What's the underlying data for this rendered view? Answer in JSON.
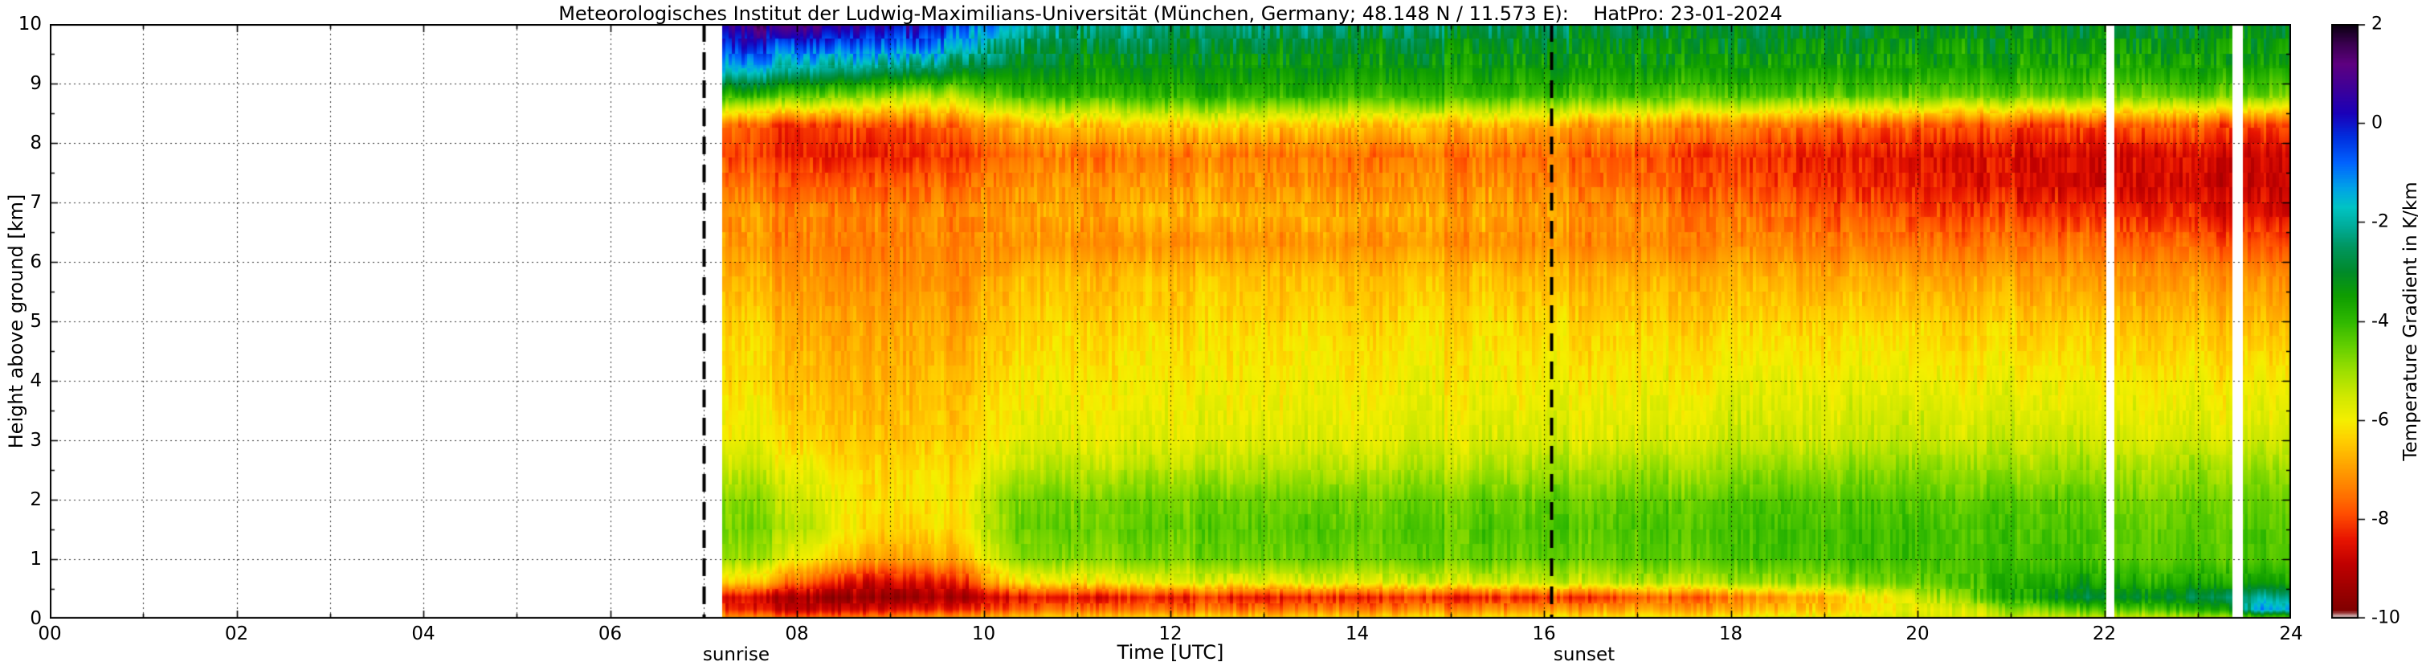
{
  "chart_data": {
    "type": "heatmap",
    "title": "Meteorologisches Institut der Ludwig-Maximilians-Universität (München, Germany; 48.148 N / 11.573 E):    HatPro: 23-01-2024",
    "xlabel": "Time [UTC]",
    "ylabel": "Height above ground [km]",
    "background": "#ffffff",
    "frame_color": "#000000",
    "grid": "dotted",
    "xlim": [
      0,
      24
    ],
    "ylim": [
      0,
      10
    ],
    "clim": [
      -10,
      2
    ],
    "x_ticks": [
      {
        "hour": 0,
        "label": "00"
      },
      {
        "hour": 2,
        "label": "02"
      },
      {
        "hour": 4,
        "label": "04"
      },
      {
        "hour": 6,
        "label": "06"
      },
      {
        "hour": 8,
        "label": "08"
      },
      {
        "hour": 10,
        "label": "10"
      },
      {
        "hour": 12,
        "label": "12"
      },
      {
        "hour": 14,
        "label": "14"
      },
      {
        "hour": 16,
        "label": "16"
      },
      {
        "hour": 18,
        "label": "18"
      },
      {
        "hour": 20,
        "label": "20"
      },
      {
        "hour": 22,
        "label": "22"
      },
      {
        "hour": 24,
        "label": "24"
      }
    ],
    "y_ticks": [
      {
        "km": 0,
        "label": "0"
      },
      {
        "km": 1,
        "label": "1"
      },
      {
        "km": 2,
        "label": "2"
      },
      {
        "km": 3,
        "label": "3"
      },
      {
        "km": 4,
        "label": "4"
      },
      {
        "km": 5,
        "label": "5"
      },
      {
        "km": 6,
        "label": "6"
      },
      {
        "km": 7,
        "label": "7"
      },
      {
        "km": 8,
        "label": "8"
      },
      {
        "km": 9,
        "label": "9"
      },
      {
        "km": 10,
        "label": "10"
      }
    ],
    "colorbar": {
      "label": "Temperature Gradient in K/km",
      "ticks": [
        {
          "value": 2,
          "label": "2"
        },
        {
          "value": 0,
          "label": "0"
        },
        {
          "value": -2,
          "label": "-2"
        },
        {
          "value": -4,
          "label": "-4"
        },
        {
          "value": -6,
          "label": "-6"
        },
        {
          "value": -8,
          "label": "-8"
        },
        {
          "value": -10,
          "label": "-10"
        }
      ]
    },
    "sun_events": [
      {
        "label": "sunrise",
        "hour": 7.0
      },
      {
        "label": "sunset",
        "hour": 16.08
      }
    ],
    "data_start_hour": 7.2,
    "data_end_hour": 24,
    "gaps": [
      [
        22.02,
        22.1
      ],
      [
        23.37,
        23.48
      ]
    ],
    "heights": [
      0,
      0.15,
      0.35,
      0.6,
      1.0,
      1.5,
      2.0,
      2.5,
      3.0,
      4.0,
      5.0,
      5.8,
      6.3,
      6.8,
      7.3,
      7.8,
      8.3,
      8.8,
      9.2,
      9.6,
      10.0
    ],
    "profiles": [
      {
        "hour": 7.2,
        "values": [
          -7.0,
          -8.2,
          -8.6,
          -6.3,
          -4.9,
          -4.6,
          -4.8,
          -5.4,
          -5.9,
          -6.2,
          -6.4,
          -6.8,
          -7.1,
          -7.0,
          -7.4,
          -8.0,
          -7.6,
          -3.8,
          -1.6,
          -0.4,
          0.8
        ]
      },
      {
        "hour": 7.6,
        "values": [
          -7.2,
          -8.5,
          -8.9,
          -6.8,
          -5.2,
          -4.8,
          -5.0,
          -5.5,
          -6.0,
          -6.3,
          -6.5,
          -6.9,
          -7.2,
          -7.1,
          -7.5,
          -8.1,
          -7.9,
          -4.0,
          -1.8,
          -0.5,
          1.0
        ]
      },
      {
        "hour": 8.1,
        "values": [
          -7.4,
          -8.8,
          -9.2,
          -7.6,
          -5.8,
          -5.2,
          -5.4,
          -5.8,
          -6.2,
          -6.5,
          -6.7,
          -7.0,
          -7.2,
          -7.2,
          -7.6,
          -8.2,
          -8.0,
          -4.2,
          -2.0,
          -0.6,
          1.2
        ]
      },
      {
        "hour": 8.7,
        "values": [
          -7.2,
          -8.6,
          -9.4,
          -8.6,
          -6.8,
          -6.2,
          -6.1,
          -6.3,
          -6.5,
          -6.7,
          -6.9,
          -7.2,
          -7.4,
          -7.3,
          -7.7,
          -8.3,
          -7.8,
          -4.6,
          -2.4,
          -0.8,
          0.6
        ]
      },
      {
        "hour": 9.3,
        "values": [
          -7.0,
          -8.5,
          -9.5,
          -8.8,
          -7.1,
          -6.5,
          -6.3,
          -6.4,
          -6.6,
          -6.8,
          -7.0,
          -7.3,
          -7.4,
          -7.4,
          -7.8,
          -8.4,
          -8.0,
          -5.4,
          -2.8,
          -1.0,
          0.2
        ]
      },
      {
        "hour": 9.8,
        "values": [
          -6.8,
          -8.3,
          -9.2,
          -8.2,
          -6.6,
          -6.1,
          -6.0,
          -6.2,
          -6.4,
          -6.6,
          -6.9,
          -7.2,
          -7.3,
          -7.2,
          -7.6,
          -8.1,
          -7.4,
          -5.0,
          -3.0,
          -1.6,
          -0.6
        ]
      },
      {
        "hour": 10.3,
        "values": [
          -6.5,
          -7.9,
          -8.6,
          -6.4,
          -5.0,
          -4.7,
          -4.8,
          -5.4,
          -5.9,
          -6.2,
          -6.5,
          -6.8,
          -7.2,
          -7.0,
          -7.2,
          -7.6,
          -6.8,
          -4.2,
          -3.3,
          -2.7,
          -1.8
        ]
      },
      {
        "hour": 11.0,
        "values": [
          -6.4,
          -7.7,
          -8.5,
          -6.1,
          -4.8,
          -4.5,
          -4.7,
          -5.3,
          -5.8,
          -6.1,
          -6.4,
          -6.7,
          -7.2,
          -6.9,
          -7.1,
          -7.5,
          -6.6,
          -4.0,
          -3.4,
          -2.9,
          -2.2
        ]
      },
      {
        "hour": 12.0,
        "values": [
          -6.3,
          -7.6,
          -8.4,
          -5.9,
          -4.7,
          -4.5,
          -4.7,
          -5.3,
          -5.8,
          -6.1,
          -6.4,
          -6.7,
          -7.2,
          -6.8,
          -7.1,
          -7.4,
          -6.4,
          -3.9,
          -3.4,
          -3.0,
          -2.4
        ]
      },
      {
        "hour": 13.0,
        "values": [
          -6.3,
          -7.5,
          -8.4,
          -5.8,
          -4.6,
          -4.4,
          -4.6,
          -5.2,
          -5.7,
          -6.0,
          -6.3,
          -6.6,
          -7.1,
          -6.8,
          -7.1,
          -7.4,
          -6.4,
          -3.9,
          -3.4,
          -3.0,
          -2.5
        ]
      },
      {
        "hour": 14.0,
        "values": [
          -6.2,
          -7.4,
          -8.3,
          -5.7,
          -4.6,
          -4.4,
          -4.6,
          -5.2,
          -5.7,
          -6.0,
          -6.3,
          -6.6,
          -7.1,
          -6.8,
          -7.2,
          -7.5,
          -6.5,
          -4.0,
          -3.4,
          -3.1,
          -2.5
        ]
      },
      {
        "hour": 15.0,
        "values": [
          -6.2,
          -7.3,
          -8.3,
          -5.6,
          -4.5,
          -4.4,
          -4.6,
          -5.2,
          -5.7,
          -6.0,
          -6.3,
          -6.6,
          -7.1,
          -6.9,
          -7.2,
          -7.5,
          -6.6,
          -4.0,
          -3.5,
          -3.1,
          -2.6
        ]
      },
      {
        "hour": 16.0,
        "values": [
          -6.1,
          -7.2,
          -8.2,
          -5.5,
          -4.5,
          -4.3,
          -4.5,
          -5.1,
          -5.6,
          -6.0,
          -6.3,
          -6.7,
          -7.2,
          -7.0,
          -7.3,
          -7.6,
          -6.8,
          -4.1,
          -3.5,
          -3.2,
          -2.7
        ]
      },
      {
        "hour": 17.0,
        "values": [
          -6.0,
          -7.0,
          -7.9,
          -5.3,
          -4.4,
          -4.3,
          -4.5,
          -5.0,
          -5.6,
          -6.0,
          -6.4,
          -6.8,
          -7.3,
          -7.2,
          -7.6,
          -7.8,
          -7.0,
          -4.2,
          -3.5,
          -3.2,
          -2.8
        ]
      },
      {
        "hour": 18.0,
        "values": [
          -5.9,
          -6.8,
          -7.5,
          -5.1,
          -4.3,
          -4.2,
          -4.4,
          -5.0,
          -5.5,
          -5.9,
          -6.4,
          -6.8,
          -7.3,
          -7.5,
          -7.9,
          -8.1,
          -7.3,
          -4.3,
          -3.6,
          -3.3,
          -2.9
        ]
      },
      {
        "hour": 19.0,
        "values": [
          -5.8,
          -6.5,
          -6.8,
          -4.9,
          -4.2,
          -4.2,
          -4.4,
          -4.9,
          -5.5,
          -5.9,
          -6.4,
          -6.9,
          -7.4,
          -7.8,
          -8.2,
          -8.4,
          -7.6,
          -4.4,
          -3.6,
          -3.3,
          -3.0
        ]
      },
      {
        "hour": 20.0,
        "values": [
          -5.7,
          -6.0,
          -5.6,
          -4.6,
          -4.2,
          -4.2,
          -4.4,
          -4.9,
          -5.4,
          -5.9,
          -6.4,
          -7.0,
          -7.5,
          -8.0,
          -8.4,
          -8.5,
          -7.8,
          -4.5,
          -3.7,
          -3.4,
          -3.0
        ]
      },
      {
        "hour": 21.0,
        "values": [
          -5.6,
          -5.0,
          -3.8,
          -3.9,
          -4.2,
          -4.3,
          -4.5,
          -5.0,
          -5.5,
          -6.0,
          -6.5,
          -7.0,
          -7.5,
          -8.1,
          -8.6,
          -8.6,
          -7.9,
          -4.5,
          -3.7,
          -3.4,
          -3.1
        ]
      },
      {
        "hour": 21.8,
        "values": [
          -5.5,
          -4.4,
          -2.9,
          -3.6,
          -4.2,
          -4.3,
          -4.5,
          -5.0,
          -5.5,
          -6.0,
          -6.5,
          -7.1,
          -7.6,
          -8.2,
          -8.7,
          -8.7,
          -8.0,
          -4.6,
          -3.8,
          -3.4,
          -3.1
        ]
      },
      {
        "hour": 22.6,
        "values": [
          -5.5,
          -4.2,
          -3.1,
          -3.8,
          -4.4,
          -4.5,
          -4.7,
          -5.1,
          -5.6,
          -6.1,
          -6.6,
          -7.1,
          -7.6,
          -8.2,
          -8.6,
          -8.5,
          -7.6,
          -4.4,
          -3.7,
          -3.3,
          -3.0
        ]
      },
      {
        "hour": 23.3,
        "values": [
          -5.2,
          -3.6,
          -2.6,
          -3.6,
          -4.3,
          -4.4,
          -4.6,
          -5.0,
          -5.6,
          -6.1,
          -6.6,
          -7.2,
          -7.8,
          -8.5,
          -8.8,
          -8.7,
          -7.9,
          -4.5,
          -3.7,
          -3.4,
          -3.1
        ]
      },
      {
        "hour": 23.7,
        "values": [
          -4.8,
          -1.2,
          -2.2,
          -3.6,
          -4.3,
          -4.4,
          -4.6,
          -5.0,
          -5.6,
          -6.1,
          -6.7,
          -7.3,
          -7.9,
          -8.6,
          -8.9,
          -8.8,
          -8.0,
          -4.6,
          -3.8,
          -3.4,
          -3.1
        ]
      },
      {
        "hour": 24.0,
        "values": [
          -4.8,
          -1.5,
          -2.4,
          -3.7,
          -4.3,
          -4.4,
          -4.6,
          -5.0,
          -5.6,
          -6.1,
          -6.7,
          -7.3,
          -7.9,
          -8.6,
          -8.9,
          -8.7,
          -8.0,
          -4.6,
          -3.8,
          -3.4,
          -3.1
        ]
      }
    ],
    "colormap": [
      [
        -10.0,
        "#e8e8e8"
      ],
      [
        -9.85,
        "#800000"
      ],
      [
        -9.4,
        "#9e0000"
      ],
      [
        -8.9,
        "#c00000"
      ],
      [
        -8.4,
        "#e81500"
      ],
      [
        -7.9,
        "#ff4d00"
      ],
      [
        -7.4,
        "#ff7d00"
      ],
      [
        -6.9,
        "#ffa500"
      ],
      [
        -6.4,
        "#ffcf00"
      ],
      [
        -6.0,
        "#f5ef00"
      ],
      [
        -5.5,
        "#cfe800"
      ],
      [
        -5.0,
        "#9cdf00"
      ],
      [
        -4.5,
        "#63cf00"
      ],
      [
        -4.0,
        "#2fb800"
      ],
      [
        -3.5,
        "#0f9e00"
      ],
      [
        -3.0,
        "#008a2a"
      ],
      [
        -2.5,
        "#00965f"
      ],
      [
        -2.1,
        "#00ab97"
      ],
      [
        -1.7,
        "#00c4c4"
      ],
      [
        -1.3,
        "#00a2e8"
      ],
      [
        -0.8,
        "#0063ff"
      ],
      [
        -0.3,
        "#0030e0"
      ],
      [
        0.2,
        "#1a00b8"
      ],
      [
        0.7,
        "#3d0099"
      ],
      [
        1.2,
        "#5e0080"
      ],
      [
        1.6,
        "#3a0050"
      ],
      [
        2.0,
        "#0a000f"
      ]
    ]
  }
}
